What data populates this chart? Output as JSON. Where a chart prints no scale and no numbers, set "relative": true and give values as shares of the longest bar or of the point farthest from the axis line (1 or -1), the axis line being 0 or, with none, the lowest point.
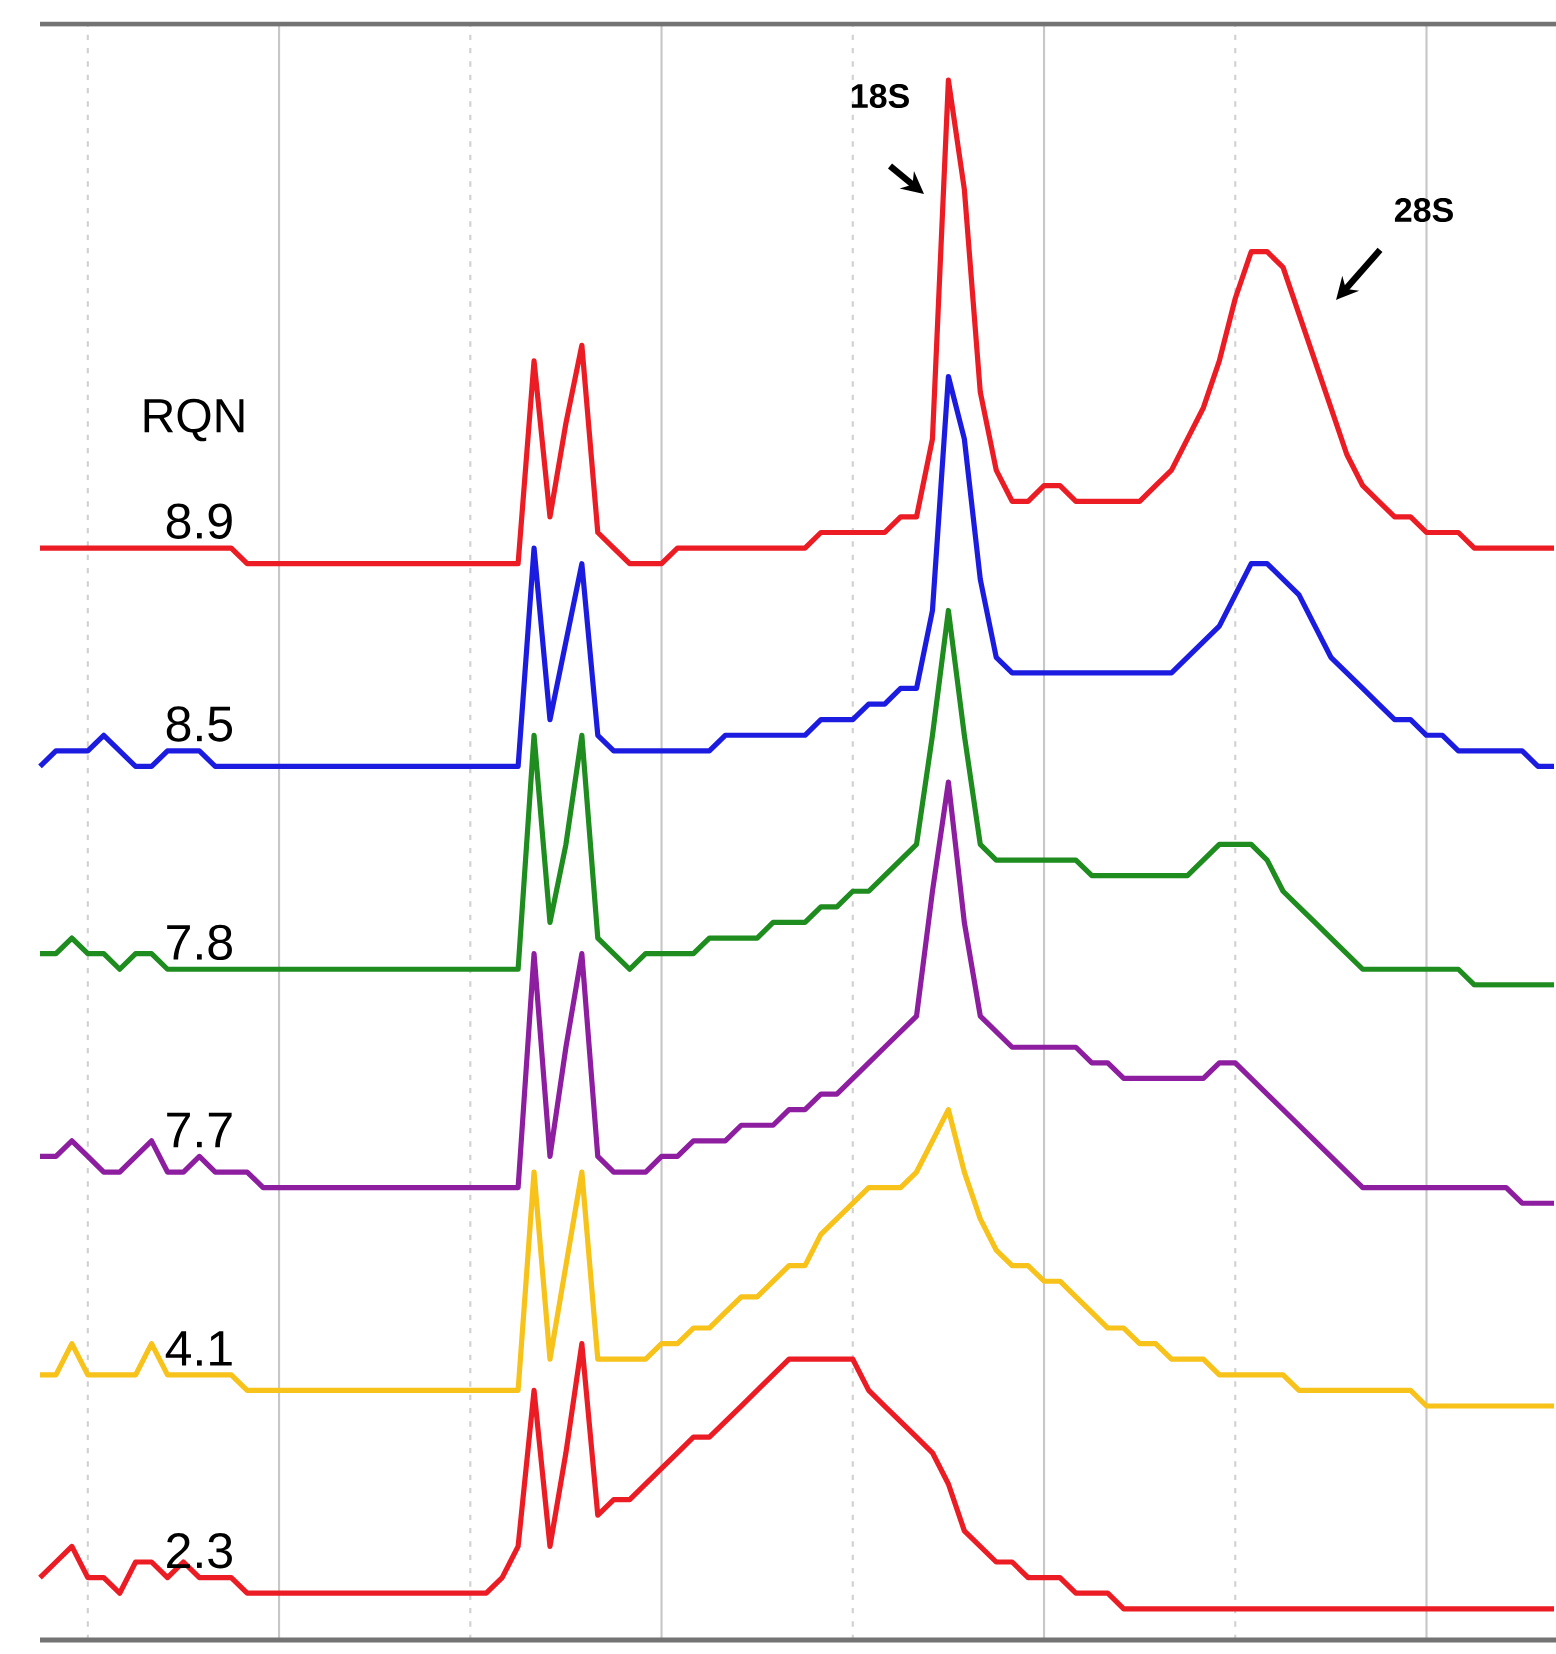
{
  "chart_data": {
    "type": "line",
    "relative": true,
    "categories": [
      null,
      null,
      null,
      null,
      null,
      null,
      null,
      null,
      null,
      null,
      null,
      null,
      null,
      null,
      null,
      null,
      null,
      null,
      null,
      null,
      null,
      null,
      null,
      null,
      null,
      null,
      null,
      null,
      null,
      null,
      null,
      null,
      null,
      null,
      null,
      null,
      null,
      null,
      null,
      null,
      null,
      null,
      null,
      null,
      null,
      null,
      null,
      null,
      null,
      null,
      null,
      null,
      null,
      null,
      null,
      null,
      null,
      null,
      null,
      null,
      null,
      null,
      null,
      null,
      null,
      null,
      null,
      null,
      null,
      null,
      null,
      null,
      null,
      null,
      null,
      null,
      null,
      null,
      null,
      null,
      null,
      null,
      null,
      null,
      null,
      null,
      null,
      null,
      null,
      null,
      null,
      null,
      null,
      null,
      null,
      null
    ],
    "grid": "x",
    "marker": "none",
    "line_style": "solid",
    "series": [
      {
        "name": "8.9",
        "color": "#ec1c24",
        "values": [
          0.7,
          0.7,
          0.7,
          0.7,
          0.7,
          0.7,
          0.7,
          0.7,
          0.7,
          0.7,
          0.7,
          0.7,
          0.7,
          0.69,
          0.69,
          0.69,
          0.69,
          0.69,
          0.69,
          0.69,
          0.69,
          0.69,
          0.69,
          0.69,
          0.69,
          0.69,
          0.69,
          0.69,
          0.69,
          0.69,
          0.69,
          0.82,
          0.72,
          0.78,
          0.83,
          0.71,
          0.7,
          0.69,
          0.69,
          0.69,
          0.7,
          0.7,
          0.7,
          0.7,
          0.7,
          0.7,
          0.7,
          0.7,
          0.7,
          0.71,
          0.71,
          0.71,
          0.71,
          0.71,
          0.72,
          0.72,
          0.77,
          1.0,
          0.93,
          0.8,
          0.75,
          0.73,
          0.73,
          0.74,
          0.74,
          0.73,
          0.73,
          0.73,
          0.73,
          0.73,
          0.74,
          0.75,
          0.77,
          0.79,
          0.82,
          0.86,
          0.89,
          0.89,
          0.88,
          0.85,
          0.82,
          0.79,
          0.76,
          0.74,
          0.73,
          0.72,
          0.72,
          0.71,
          0.71,
          0.71,
          0.7,
          0.7,
          0.7,
          0.7,
          0.7,
          0.7
        ]
      },
      {
        "name": "8.5",
        "color": "#1c1ce0",
        "values": [
          0.56,
          0.57,
          0.57,
          0.57,
          0.58,
          0.57,
          0.56,
          0.56,
          0.57,
          0.57,
          0.57,
          0.56,
          0.56,
          0.56,
          0.56,
          0.56,
          0.56,
          0.56,
          0.56,
          0.56,
          0.56,
          0.56,
          0.56,
          0.56,
          0.56,
          0.56,
          0.56,
          0.56,
          0.56,
          0.56,
          0.56,
          0.7,
          0.59,
          0.64,
          0.69,
          0.58,
          0.57,
          0.57,
          0.57,
          0.57,
          0.57,
          0.57,
          0.57,
          0.58,
          0.58,
          0.58,
          0.58,
          0.58,
          0.58,
          0.59,
          0.59,
          0.59,
          0.6,
          0.6,
          0.61,
          0.61,
          0.66,
          0.81,
          0.77,
          0.68,
          0.63,
          0.62,
          0.62,
          0.62,
          0.62,
          0.62,
          0.62,
          0.62,
          0.62,
          0.62,
          0.62,
          0.62,
          0.63,
          0.64,
          0.65,
          0.67,
          0.69,
          0.69,
          0.68,
          0.67,
          0.65,
          0.63,
          0.62,
          0.61,
          0.6,
          0.59,
          0.59,
          0.58,
          0.58,
          0.57,
          0.57,
          0.57,
          0.57,
          0.57,
          0.56,
          0.56
        ]
      },
      {
        "name": "7.8",
        "color": "#1e8c1e",
        "values": [
          0.44,
          0.44,
          0.45,
          0.44,
          0.44,
          0.43,
          0.44,
          0.44,
          0.43,
          0.43,
          0.43,
          0.43,
          0.43,
          0.43,
          0.43,
          0.43,
          0.43,
          0.43,
          0.43,
          0.43,
          0.43,
          0.43,
          0.43,
          0.43,
          0.43,
          0.43,
          0.43,
          0.43,
          0.43,
          0.43,
          0.43,
          0.58,
          0.46,
          0.51,
          0.58,
          0.45,
          0.44,
          0.43,
          0.44,
          0.44,
          0.44,
          0.44,
          0.45,
          0.45,
          0.45,
          0.45,
          0.46,
          0.46,
          0.46,
          0.47,
          0.47,
          0.48,
          0.48,
          0.49,
          0.5,
          0.51,
          0.58,
          0.66,
          0.58,
          0.51,
          0.5,
          0.5,
          0.5,
          0.5,
          0.5,
          0.5,
          0.49,
          0.49,
          0.49,
          0.49,
          0.49,
          0.49,
          0.49,
          0.5,
          0.51,
          0.51,
          0.51,
          0.5,
          0.48,
          0.47,
          0.46,
          0.45,
          0.44,
          0.43,
          0.43,
          0.43,
          0.43,
          0.43,
          0.43,
          0.43,
          0.42,
          0.42,
          0.42,
          0.42,
          0.42,
          0.42
        ]
      },
      {
        "name": "7.7",
        "color": "#8e1ea0",
        "values": [
          0.31,
          0.31,
          0.32,
          0.31,
          0.3,
          0.3,
          0.31,
          0.32,
          0.3,
          0.3,
          0.31,
          0.3,
          0.3,
          0.3,
          0.29,
          0.29,
          0.29,
          0.29,
          0.29,
          0.29,
          0.29,
          0.29,
          0.29,
          0.29,
          0.29,
          0.29,
          0.29,
          0.29,
          0.29,
          0.29,
          0.29,
          0.44,
          0.31,
          0.38,
          0.44,
          0.31,
          0.3,
          0.3,
          0.3,
          0.31,
          0.31,
          0.32,
          0.32,
          0.32,
          0.33,
          0.33,
          0.33,
          0.34,
          0.34,
          0.35,
          0.35,
          0.36,
          0.37,
          0.38,
          0.39,
          0.4,
          0.48,
          0.55,
          0.46,
          0.4,
          0.39,
          0.38,
          0.38,
          0.38,
          0.38,
          0.38,
          0.37,
          0.37,
          0.36,
          0.36,
          0.36,
          0.36,
          0.36,
          0.36,
          0.37,
          0.37,
          0.36,
          0.35,
          0.34,
          0.33,
          0.32,
          0.31,
          0.3,
          0.29,
          0.29,
          0.29,
          0.29,
          0.29,
          0.29,
          0.29,
          0.29,
          0.29,
          0.29,
          0.28,
          0.28,
          0.28
        ]
      },
      {
        "name": "4.1",
        "color": "#f7c21a",
        "values": [
          0.17,
          0.17,
          0.19,
          0.17,
          0.17,
          0.17,
          0.17,
          0.19,
          0.17,
          0.17,
          0.17,
          0.17,
          0.17,
          0.16,
          0.16,
          0.16,
          0.16,
          0.16,
          0.16,
          0.16,
          0.16,
          0.16,
          0.16,
          0.16,
          0.16,
          0.16,
          0.16,
          0.16,
          0.16,
          0.16,
          0.16,
          0.3,
          0.18,
          0.24,
          0.3,
          0.18,
          0.18,
          0.18,
          0.18,
          0.19,
          0.19,
          0.2,
          0.2,
          0.21,
          0.22,
          0.22,
          0.23,
          0.24,
          0.24,
          0.26,
          0.27,
          0.28,
          0.29,
          0.29,
          0.29,
          0.3,
          0.32,
          0.34,
          0.3,
          0.27,
          0.25,
          0.24,
          0.24,
          0.23,
          0.23,
          0.22,
          0.21,
          0.2,
          0.2,
          0.19,
          0.19,
          0.18,
          0.18,
          0.18,
          0.17,
          0.17,
          0.17,
          0.17,
          0.17,
          0.16,
          0.16,
          0.16,
          0.16,
          0.16,
          0.16,
          0.16,
          0.16,
          0.15,
          0.15,
          0.15,
          0.15,
          0.15,
          0.15,
          0.15,
          0.15,
          0.15
        ]
      },
      {
        "name": "2.3",
        "color": "#ec1c24",
        "values": [
          0.04,
          0.05,
          0.06,
          0.04,
          0.04,
          0.03,
          0.05,
          0.05,
          0.04,
          0.05,
          0.04,
          0.04,
          0.04,
          0.03,
          0.03,
          0.03,
          0.03,
          0.03,
          0.03,
          0.03,
          0.03,
          0.03,
          0.03,
          0.03,
          0.03,
          0.03,
          0.03,
          0.03,
          0.03,
          0.04,
          0.06,
          0.16,
          0.06,
          0.12,
          0.19,
          0.08,
          0.09,
          0.09,
          0.1,
          0.11,
          0.12,
          0.13,
          0.13,
          0.14,
          0.15,
          0.16,
          0.17,
          0.18,
          0.18,
          0.18,
          0.18,
          0.18,
          0.16,
          0.15,
          0.14,
          0.13,
          0.12,
          0.1,
          0.07,
          0.06,
          0.05,
          0.05,
          0.04,
          0.04,
          0.04,
          0.03,
          0.03,
          0.03,
          0.02,
          0.02,
          0.02,
          0.02,
          0.02,
          0.02,
          0.02,
          0.02,
          0.02,
          0.02,
          0.02,
          0.02,
          0.02,
          0.02,
          0.02,
          0.02,
          0.02,
          0.02,
          0.02,
          0.02,
          0.02,
          0.02,
          0.02,
          0.02,
          0.02,
          0.02,
          0.02,
          0.02
        ]
      }
    ],
    "annotations": [
      "RQN",
      "18S",
      "28S"
    ]
  }
}
